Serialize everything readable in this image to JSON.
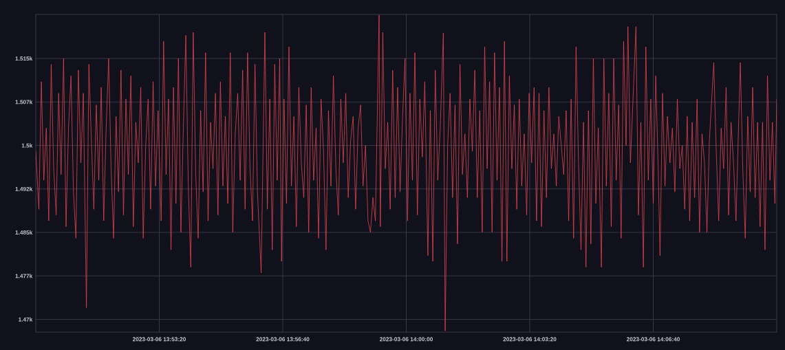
{
  "chart_data": {
    "type": "line",
    "x": [
      "2023-03-06T13:50:00",
      "2023-03-06T13:50:05",
      "2023-03-06T13:50:09",
      "2023-03-06T13:50:13",
      "2023-03-06T13:50:17",
      "2023-03-06T13:50:21",
      "2023-03-06T13:50:25",
      "2023-03-06T13:50:29",
      "2023-03-06T13:50:33",
      "2023-03-06T13:50:37",
      "2023-03-06T13:50:41",
      "2023-03-06T13:50:45",
      "2023-03-06T13:50:49",
      "2023-03-06T13:50:53",
      "2023-03-06T13:50:57",
      "2023-03-06T13:51:01",
      "2023-03-06T13:51:05",
      "2023-03-06T13:51:09",
      "2023-03-06T13:51:13",
      "2023-03-06T13:51:17",
      "2023-03-06T13:51:22",
      "2023-03-06T13:51:26",
      "2023-03-06T13:51:30",
      "2023-03-06T13:51:34",
      "2023-03-06T13:51:38",
      "2023-03-06T13:51:42",
      "2023-03-06T13:51:46",
      "2023-03-06T13:51:50",
      "2023-03-06T13:51:54",
      "2023-03-06T13:51:58",
      "2023-03-06T13:52:02",
      "2023-03-06T13:52:06",
      "2023-03-06T13:52:10",
      "2023-03-06T13:52:14",
      "2023-03-06T13:52:18",
      "2023-03-06T13:52:22",
      "2023-03-06T13:52:26",
      "2023-03-06T13:52:30",
      "2023-03-06T13:52:34",
      "2023-03-06T13:52:38",
      "2023-03-06T13:52:42",
      "2023-03-06T13:52:46",
      "2023-03-06T13:52:50",
      "2023-03-06T13:52:54",
      "2023-03-06T13:52:58",
      "2023-03-06T13:53:02",
      "2023-03-06T13:53:06",
      "2023-03-06T13:53:10",
      "2023-03-06T13:53:14",
      "2023-03-06T13:53:18",
      "2023-03-06T13:53:23",
      "2023-03-06T13:53:27",
      "2023-03-06T13:53:31",
      "2023-03-06T13:53:35",
      "2023-03-06T13:53:39",
      "2023-03-06T13:53:43",
      "2023-03-06T13:53:47",
      "2023-03-06T13:53:51",
      "2023-03-06T13:53:55",
      "2023-03-06T13:53:59",
      "2023-03-06T13:54:03",
      "2023-03-06T13:54:07",
      "2023-03-06T13:54:11",
      "2023-03-06T13:54:15",
      "2023-03-06T13:54:19",
      "2023-03-06T13:54:23",
      "2023-03-06T13:54:27",
      "2023-03-06T13:54:31",
      "2023-03-06T13:54:35",
      "2023-03-06T13:54:39",
      "2023-03-06T13:54:43",
      "2023-03-06T13:54:47",
      "2023-03-06T13:54:51",
      "2023-03-06T13:54:55",
      "2023-03-06T13:54:59",
      "2023-03-06T13:55:03",
      "2023-03-06T13:55:07",
      "2023-03-06T13:55:11",
      "2023-03-06T13:55:15",
      "2023-03-06T13:55:19",
      "2023-03-06T13:55:23",
      "2023-03-06T13:55:27",
      "2023-03-06T13:55:31",
      "2023-03-06T13:55:35",
      "2023-03-06T13:55:39",
      "2023-03-06T13:55:43",
      "2023-03-06T13:55:47",
      "2023-03-06T13:55:51",
      "2023-03-06T13:55:55",
      "2023-03-06T13:55:59",
      "2023-03-06T13:56:05",
      "2023-03-06T13:56:11",
      "2023-03-06T13:56:15",
      "2023-03-06T13:56:19",
      "2023-03-06T13:56:23",
      "2023-03-06T13:56:27",
      "2023-03-06T13:56:31",
      "2023-03-06T13:56:35",
      "2023-03-06T13:56:38",
      "2023-03-06T13:56:42",
      "2023-03-06T13:56:46",
      "2023-03-06T13:56:50",
      "2023-03-06T13:56:54",
      "2023-03-06T13:56:58",
      "2023-03-06T13:57:02",
      "2023-03-06T13:57:06",
      "2023-03-06T13:57:10",
      "2023-03-06T13:57:14",
      "2023-03-06T13:57:18",
      "2023-03-06T13:57:22",
      "2023-03-06T13:57:26",
      "2023-03-06T13:57:30",
      "2023-03-06T13:57:34",
      "2023-03-06T13:57:38",
      "2023-03-06T13:57:42",
      "2023-03-06T13:57:46",
      "2023-03-06T13:57:50",
      "2023-03-06T13:57:54",
      "2023-03-06T13:57:58",
      "2023-03-06T13:58:02",
      "2023-03-06T13:58:06",
      "2023-03-06T13:58:10",
      "2023-03-06T13:58:14",
      "2023-03-06T13:58:18",
      "2023-03-06T13:58:22",
      "2023-03-06T13:58:26",
      "2023-03-06T13:58:30",
      "2023-03-06T13:58:34",
      "2023-03-06T13:58:38",
      "2023-03-06T13:58:42",
      "2023-03-06T13:58:46",
      "2023-03-06T13:58:50",
      "2023-03-06T13:58:54",
      "2023-03-06T13:58:58",
      "2023-03-06T13:59:02",
      "2023-03-06T13:59:06",
      "2023-03-06T13:59:10",
      "2023-03-06T13:59:16",
      "2023-03-06T13:59:18",
      "2023-03-06T13:59:22",
      "2023-03-06T13:59:26",
      "2023-03-06T13:59:30",
      "2023-03-06T13:59:34",
      "2023-03-06T13:59:38",
      "2023-03-06T13:59:42",
      "2023-03-06T13:59:46",
      "2023-03-06T13:59:50",
      "2023-03-06T13:59:54",
      "2023-03-06T13:59:58",
      "2023-03-06T14:00:02",
      "2023-03-06T14:00:06",
      "2023-03-06T14:00:10",
      "2023-03-06T14:00:14",
      "2023-03-06T14:00:18",
      "2023-03-06T14:00:22",
      "2023-03-06T14:00:26",
      "2023-03-06T14:00:30",
      "2023-03-06T14:00:35",
      "2023-03-06T14:00:39",
      "2023-03-06T14:00:43",
      "2023-03-06T14:00:47",
      "2023-03-06T14:00:51",
      "2023-03-06T14:00:55",
      "2023-03-06T14:01:00",
      "2023-03-06T14:01:03",
      "2023-03-06T14:01:07",
      "2023-03-06T14:01:11",
      "2023-03-06T14:01:15",
      "2023-03-06T14:01:19",
      "2023-03-06T14:01:23",
      "2023-03-06T14:01:27",
      "2023-03-06T14:01:31",
      "2023-03-06T14:01:35",
      "2023-03-06T14:01:39",
      "2023-03-06T14:01:43",
      "2023-03-06T14:01:47",
      "2023-03-06T14:01:51",
      "2023-03-06T14:01:55",
      "2023-03-06T14:01:59",
      "2023-03-06T14:02:03",
      "2023-03-06T14:02:07",
      "2023-03-06T14:02:11",
      "2023-03-06T14:02:15",
      "2023-03-06T14:02:19",
      "2023-03-06T14:02:23",
      "2023-03-06T14:02:27",
      "2023-03-06T14:02:31",
      "2023-03-06T14:02:35",
      "2023-03-06T14:02:39",
      "2023-03-06T14:02:43",
      "2023-03-06T14:02:47",
      "2023-03-06T14:02:51",
      "2023-03-06T14:02:55",
      "2023-03-06T14:02:59",
      "2023-03-06T14:03:03",
      "2023-03-06T14:03:07",
      "2023-03-06T14:03:11",
      "2023-03-06T14:03:15",
      "2023-03-06T14:03:19",
      "2023-03-06T14:03:23",
      "2023-03-06T14:03:27",
      "2023-03-06T14:03:31",
      "2023-03-06T14:03:35",
      "2023-03-06T14:03:39",
      "2023-03-06T14:03:43",
      "2023-03-06T14:03:47",
      "2023-03-06T14:03:51",
      "2023-03-06T14:03:55",
      "2023-03-06T14:03:59",
      "2023-03-06T14:04:03",
      "2023-03-06T14:04:07",
      "2023-03-06T14:04:11",
      "2023-03-06T14:04:15",
      "2023-03-06T14:04:19",
      "2023-03-06T14:04:23",
      "2023-03-06T14:04:27",
      "2023-03-06T14:04:31",
      "2023-03-06T14:04:35",
      "2023-03-06T14:04:39",
      "2023-03-06T14:04:43",
      "2023-03-06T14:04:47",
      "2023-03-06T14:04:51",
      "2023-03-06T14:04:55",
      "2023-03-06T14:04:59",
      "2023-03-06T14:05:03",
      "2023-03-06T14:05:07",
      "2023-03-06T14:05:11",
      "2023-03-06T14:05:16",
      "2023-03-06T14:05:20",
      "2023-03-06T14:05:24",
      "2023-03-06T14:05:28",
      "2023-03-06T14:05:32",
      "2023-03-06T14:05:36",
      "2023-03-06T14:05:40",
      "2023-03-06T14:05:44",
      "2023-03-06T14:05:48",
      "2023-03-06T14:05:52",
      "2023-03-06T14:05:56",
      "2023-03-06T14:05:59",
      "2023-03-06T14:06:03",
      "2023-03-06T14:06:08",
      "2023-03-06T14:06:12",
      "2023-03-06T14:06:16",
      "2023-03-06T14:06:20",
      "2023-03-06T14:06:24",
      "2023-03-06T14:06:28",
      "2023-03-06T14:06:32",
      "2023-03-06T14:06:36",
      "2023-03-06T14:06:40",
      "2023-03-06T14:06:44",
      "2023-03-06T14:06:48",
      "2023-03-06T14:06:51",
      "2023-03-06T14:06:55",
      "2023-03-06T14:06:59",
      "2023-03-06T14:07:03",
      "2023-03-06T14:07:07",
      "2023-03-06T14:07:11",
      "2023-03-06T14:07:15",
      "2023-03-06T14:07:19",
      "2023-03-06T14:07:23",
      "2023-03-06T14:07:27",
      "2023-03-06T14:07:31",
      "2023-03-06T14:07:35",
      "2023-03-06T14:07:39",
      "2023-03-06T14:07:43",
      "2023-03-06T14:07:47",
      "2023-03-06T14:07:51",
      "2023-03-06T14:07:55",
      "2023-03-06T14:07:59",
      "2023-03-06T14:08:03",
      "2023-03-06T14:08:07",
      "2023-03-06T14:08:11",
      "2023-03-06T14:08:18",
      "2023-03-06T14:08:22",
      "2023-03-06T14:08:26",
      "2023-03-06T14:08:30",
      "2023-03-06T14:08:34",
      "2023-03-06T14:08:38",
      "2023-03-06T14:08:42",
      "2023-03-06T14:08:46",
      "2023-03-06T14:08:50",
      "2023-03-06T14:08:54",
      "2023-03-06T14:09:01",
      "2023-03-06T14:09:05",
      "2023-03-06T14:09:09",
      "2023-03-06T14:09:13",
      "2023-03-06T14:09:17",
      "2023-03-06T14:09:21",
      "2023-03-06T14:09:25",
      "2023-03-06T14:09:29",
      "2023-03-06T14:09:33",
      "2023-03-06T14:09:37",
      "2023-03-06T14:09:41",
      "2023-03-06T14:09:45",
      "2023-03-06T14:09:49",
      "2023-03-06T14:09:53",
      "2023-03-06T14:09:57",
      "2023-03-06T14:10:00"
    ],
    "series": [
      {
        "color": "#e04550",
        "values": [
          1499,
          1489,
          1511,
          1494,
          1503,
          1487,
          1514,
          1496,
          1488,
          1509,
          1495,
          1515,
          1486,
          1503,
          1512,
          1492,
          1484,
          1513,
          1497,
          1509,
          1472,
          1514,
          1501,
          1489,
          1507,
          1494,
          1510,
          1487,
          1503,
          1515,
          1496,
          1484,
          1505,
          1492,
          1513,
          1488,
          1508,
          1495,
          1512,
          1486,
          1504,
          1497,
          1510,
          1484,
          1500,
          1508,
          1489,
          1511,
          1493,
          1506,
          1487,
          1518,
          1495,
          1508,
          1482,
          1510,
          1490,
          1515,
          1485,
          1503,
          1519,
          1493,
          1479,
          1519.5,
          1495,
          1484,
          1506,
          1492,
          1516,
          1487,
          1504,
          1496,
          1509,
          1488,
          1511,
          1493,
          1505,
          1490,
          1516,
          1485,
          1502,
          1509,
          1494,
          1513,
          1489,
          1516,
          1496,
          1487,
          1514,
          1492,
          1478,
          1519.5,
          1489,
          1508,
          1482,
          1514,
          1494,
          1515,
          1480,
          1508,
          1490,
          1517,
          1493,
          1505,
          1486,
          1510,
          1497,
          1491,
          1507,
          1485,
          1510,
          1494,
          1503,
          1484,
          1508,
          1499,
          1482,
          1506,
          1493,
          1512,
          1496,
          1488,
          1508,
          1497,
          1509,
          1491,
          1501,
          1505,
          1489,
          1503,
          1507,
          1493,
          1500,
          1487,
          1485,
          1491,
          1487,
          1522.5,
          1486,
          1519.5,
          1496,
          1504,
          1489,
          1513,
          1491,
          1510,
          1492,
          1505,
          1515,
          1487,
          1509,
          1494,
          1516,
          1488,
          1508,
          1498,
          1511,
          1481,
          1506,
          1480,
          1513,
          1494,
          1503,
          1519.4,
          1468,
          1500,
          1509,
          1491,
          1507,
          1483,
          1514,
          1495,
          1502,
          1491,
          1508,
          1499,
          1513,
          1491,
          1506,
          1485,
          1517,
          1496,
          1511,
          1485,
          1516,
          1494,
          1510,
          1480,
          1518,
          1480,
          1512,
          1496,
          1507,
          1489,
          1508,
          1493,
          1502,
          1488,
          1509,
          1497,
          1510,
          1487,
          1509,
          1486,
          1506,
          1491,
          1510,
          1496,
          1502,
          1493,
          1505,
          1500,
          1495,
          1506,
          1487,
          1508,
          1484,
          1517,
          1497,
          1482,
          1504,
          1479,
          1506,
          1483,
          1515,
          1490,
          1503,
          1479,
          1515,
          1493,
          1509,
          1486,
          1515,
          1494,
          1507,
          1484,
          1518,
          1500,
          1520.5,
          1497,
          1510,
          1520.5,
          1488,
          1504,
          1479,
          1517,
          1494,
          1508,
          1490,
          1512,
          1496,
          1481,
          1509,
          1493,
          1505,
          1497,
          1503,
          1492,
          1508,
          1496,
          1500,
          1489,
          1505,
          1487,
          1504,
          1491,
          1508,
          1485,
          1502,
          1497,
          1485,
          1501,
          1514.3,
          1499,
          1487,
          1503,
          1496,
          1510,
          1488,
          1504,
          1497,
          1487,
          1514.3,
          1496,
          1484,
          1505,
          1492,
          1510,
          1491,
          1504,
          1486,
          1504,
          1482,
          1512,
          1494,
          1504,
          1490,
          1508
        ]
      }
    ],
    "xlim": [
      "2023-03-06T13:50:00",
      "2023-03-06T14:10:00"
    ],
    "xticks": [
      {
        "value": "2023-03-06T13:53:20",
        "label": "2023-03-06 13:53:20"
      },
      {
        "value": "2023-03-06T13:56:40",
        "label": "2023-03-06 13:56:40"
      },
      {
        "value": "2023-03-06T14:00:00",
        "label": "2023-03-06 14:00:00"
      },
      {
        "value": "2023-03-06T14:03:20",
        "label": "2023-03-06 14:03:20"
      },
      {
        "value": "2023-03-06T14:06:40",
        "label": "2023-03-06 14:06:40"
      }
    ],
    "ylim": [
      1467.8,
      1522.6
    ],
    "yticks": [
      {
        "value": 1470,
        "label": "1.47k"
      },
      {
        "value": 1477.5,
        "label": "1.477k"
      },
      {
        "value": 1485,
        "label": "1.485k"
      },
      {
        "value": 1492.5,
        "label": "1.492k"
      },
      {
        "value": 1500,
        "label": "1.5k"
      },
      {
        "value": 1507.5,
        "label": "1.507k"
      },
      {
        "value": 1515,
        "label": "1.515k"
      }
    ],
    "grid": true
  }
}
